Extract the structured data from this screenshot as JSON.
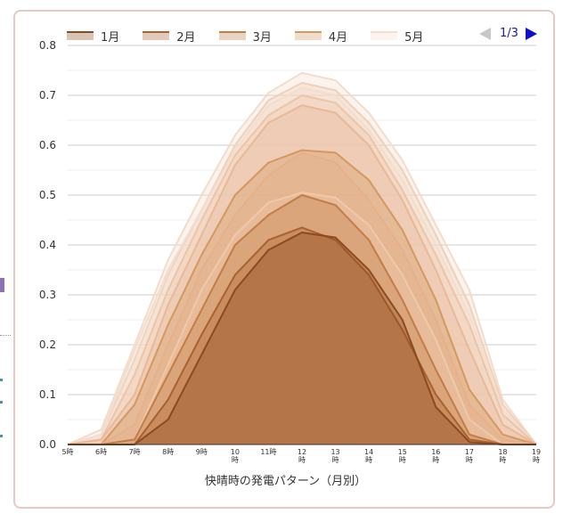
{
  "chart_data": {
    "type": "area",
    "title": "快晴時の発電パターン（月別）",
    "x_labels": [
      [
        "5時"
      ],
      [
        "6時"
      ],
      [
        "7時"
      ],
      [
        "8時"
      ],
      [
        "9時"
      ],
      [
        "10",
        "時"
      ],
      [
        "11時"
      ],
      [
        "12",
        "時"
      ],
      [
        "13",
        "時"
      ],
      [
        "14",
        "時"
      ],
      [
        "15",
        "時"
      ],
      [
        "16",
        "時"
      ],
      [
        "17",
        "時"
      ],
      [
        "18",
        "時"
      ],
      [
        "19",
        "時"
      ]
    ],
    "ylim": [
      0,
      0.8
    ],
    "yticks": [
      "0.0",
      "0.1",
      "0.2",
      "0.3",
      "0.4",
      "0.5",
      "0.6",
      "0.7",
      "0.8"
    ],
    "series": [
      {
        "name": "1月",
        "color": "#8b4a1f",
        "values": [
          0,
          0,
          0,
          0.05,
          0.18,
          0.31,
          0.39,
          0.425,
          0.415,
          0.35,
          0.25,
          0.075,
          0.005,
          0,
          0
        ]
      },
      {
        "name": "2月",
        "color": "#a8612f",
        "values": [
          0,
          0,
          0,
          0.09,
          0.22,
          0.34,
          0.41,
          0.435,
          0.41,
          0.34,
          0.23,
          0.1,
          0.01,
          0,
          0
        ]
      },
      {
        "name": "3月",
        "color": "#c27c45",
        "values": [
          0,
          0,
          0.01,
          0.14,
          0.27,
          0.4,
          0.46,
          0.5,
          0.48,
          0.41,
          0.29,
          0.15,
          0.02,
          0,
          0
        ]
      },
      {
        "name": "4月",
        "color": "#d5985f",
        "values": [
          0,
          0,
          0.08,
          0.24,
          0.38,
          0.5,
          0.565,
          0.59,
          0.585,
          0.53,
          0.43,
          0.29,
          0.11,
          0.02,
          0
        ]
      },
      {
        "name": "5月",
        "color": "#f2ddce",
        "values": [
          0,
          0.02,
          0.19,
          0.35,
          0.47,
          0.59,
          0.68,
          0.715,
          0.7,
          0.63,
          0.53,
          0.4,
          0.26,
          0.07,
          0
        ]
      },
      {
        "name": "",
        "color": "#efc9aa",
        "values": [
          0,
          0,
          0.01,
          0.16,
          0.31,
          0.42,
          0.485,
          0.505,
          0.495,
          0.44,
          0.34,
          0.21,
          0.05,
          0,
          0
        ]
      },
      {
        "name": "",
        "color": "#e6b08a",
        "values": [
          0,
          0,
          0.04,
          0.2,
          0.35,
          0.46,
          0.54,
          0.585,
          0.565,
          0.49,
          0.39,
          0.25,
          0.08,
          0.01,
          0
        ]
      },
      {
        "name": "",
        "color": "#e9b898",
        "values": [
          0,
          0.01,
          0.1,
          0.28,
          0.42,
          0.56,
          0.645,
          0.68,
          0.665,
          0.6,
          0.49,
          0.35,
          0.19,
          0.04,
          0
        ]
      },
      {
        "name": "",
        "color": "#edc4a7",
        "values": [
          0,
          0.01,
          0.14,
          0.31,
          0.45,
          0.58,
          0.66,
          0.7,
          0.685,
          0.62,
          0.51,
          0.38,
          0.24,
          0.06,
          0
        ]
      },
      {
        "name": "",
        "color": "#f0d0b8",
        "values": [
          0,
          0.02,
          0.17,
          0.34,
          0.47,
          0.6,
          0.69,
          0.725,
          0.71,
          0.645,
          0.55,
          0.42,
          0.28,
          0.08,
          0
        ]
      },
      {
        "name": "",
        "color": "#f3dccb",
        "values": [
          0,
          0.03,
          0.2,
          0.37,
          0.5,
          0.62,
          0.705,
          0.745,
          0.73,
          0.665,
          0.57,
          0.44,
          0.31,
          0.09,
          0
        ]
      }
    ],
    "legend_position": "top",
    "grid": true
  },
  "pager": {
    "label": "1/3"
  }
}
